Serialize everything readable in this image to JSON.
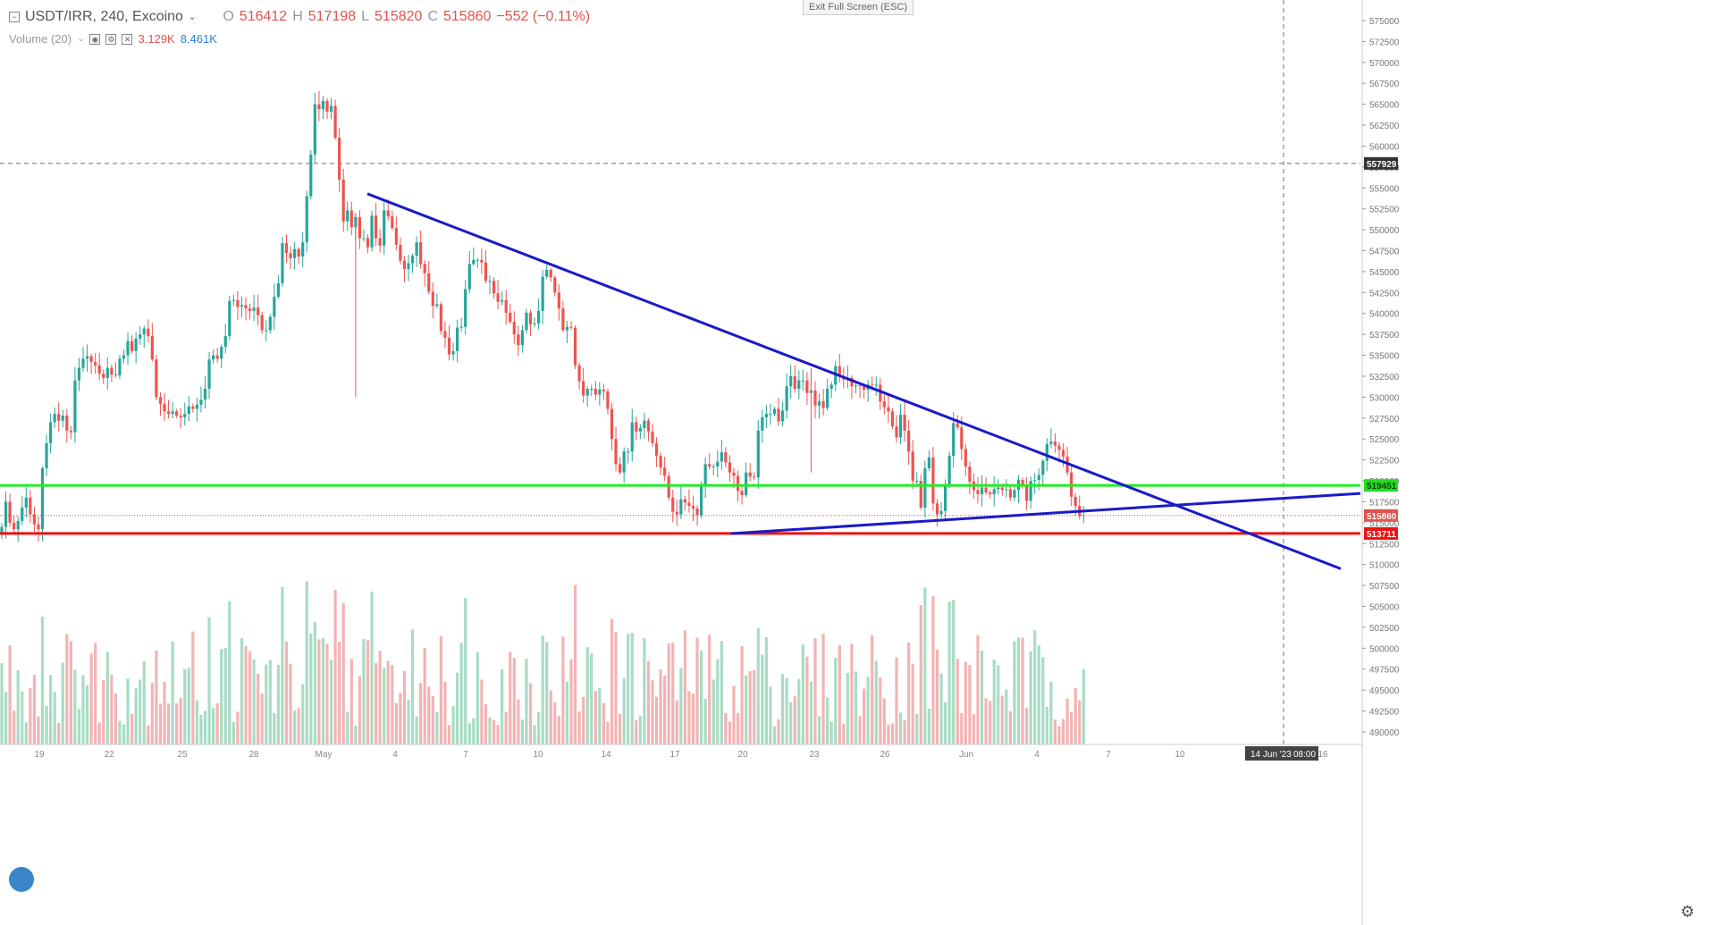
{
  "legend": {
    "symbol": "USDT/IRR, 240, Excoino",
    "o_label": "O",
    "o": "516412",
    "h_label": "H",
    "h": "517198",
    "l_label": "L",
    "l": "515820",
    "c_label": "C",
    "c": "515860",
    "change": "−552 (−0.11%)",
    "volume_label": "Volume (20)",
    "vol1": "3.129K",
    "vol2": "8.461K"
  },
  "exit_fullscreen": "Exit Full Screen (ESC)",
  "chart_data": {
    "type": "candlestick",
    "y_ticks": [
      575000,
      572500,
      570000,
      567500,
      565000,
      562500,
      560000,
      557500,
      555000,
      552500,
      550000,
      547500,
      545000,
      542500,
      540000,
      537500,
      535000,
      532500,
      530000,
      527500,
      525000,
      522500,
      520000,
      517500,
      515000,
      512500,
      510000,
      507500,
      505000,
      502500,
      500000,
      497500,
      495000,
      492500,
      490000
    ],
    "y_range": [
      488500,
      576600
    ],
    "x_labels": [
      "19",
      "22",
      "25",
      "28",
      "May",
      "4",
      "7",
      "10",
      "14",
      "17",
      "20",
      "23",
      "26",
      "Jun",
      "4",
      "7",
      "10",
      "14 Jun '23",
      "08:00",
      "16"
    ],
    "price_labels": [
      {
        "value": "557929",
        "color": "#333333",
        "style": "dashed"
      },
      {
        "value": "519451",
        "color": "#22dd22",
        "style": "solid"
      },
      {
        "value": "515860",
        "color": "#e0534f",
        "style": "dotted"
      },
      {
        "value": "513711",
        "color": "#ee1111",
        "style": "solid"
      }
    ],
    "support_level": 519451,
    "resistance_level": 513711,
    "colors": {
      "up": "#26a69a",
      "down": "#ef5350",
      "vol_up": "#a8dcc4",
      "vol_down": "#f4b3b3",
      "trend": "#1a1ac8"
    },
    "closes": [
      514500,
      517500,
      515000,
      514200,
      515200,
      516800,
      518000,
      516000,
      514800,
      514200,
      521500,
      524500,
      527000,
      528000,
      527200,
      527800,
      526000,
      525800,
      532000,
      533500,
      534600,
      534900,
      534200,
      533800,
      532800,
      532300,
      533500,
      532700,
      532600,
      534600,
      535000,
      536700,
      535500,
      537000,
      537500,
      538200,
      537300,
      534500,
      530000,
      529200,
      528300,
      528000,
      528300,
      527800,
      527600,
      528000,
      528900,
      528600,
      529100,
      529700,
      531000,
      534500,
      535000,
      534600,
      536000,
      537300,
      541500,
      541600,
      540800,
      541000,
      540600,
      540300,
      540700,
      539800,
      538000,
      538000,
      539600,
      542000,
      543600,
      548400,
      547200,
      546600,
      547700,
      546800,
      548500,
      554000,
      559000,
      565000,
      564400,
      565400,
      564100,
      564800,
      561000,
      556000,
      551000,
      552300,
      550300,
      551500,
      549000,
      549000,
      547900,
      551700,
      549000,
      548100,
      552300,
      551600,
      550200,
      548200,
      546300,
      545300,
      546000,
      546900,
      548500,
      545900,
      544800,
      542600,
      540900,
      541100,
      537900,
      537100,
      535100,
      535500,
      538300,
      538400,
      542900,
      545900,
      546400,
      546400,
      546100,
      543900,
      543900,
      542400,
      541400,
      541600,
      540100,
      539000,
      537500,
      536200,
      538000,
      540100,
      538700,
      538800,
      540300,
      544400,
      545200,
      544300,
      542500,
      540600,
      538000,
      538400,
      538300,
      533800,
      531900,
      530200,
      531000,
      531000,
      530300,
      530900,
      530700,
      528600,
      525000,
      522000,
      521000,
      523500,
      523500,
      527000,
      525900,
      526300,
      527200,
      525900,
      524500,
      523000,
      521600,
      520600,
      518000,
      516300,
      516000,
      517800,
      517400,
      517000,
      516700,
      515900,
      519500,
      522000,
      521700,
      521700,
      522300,
      523400,
      522200,
      521000,
      520600,
      518800,
      518300,
      521000,
      520500,
      520400,
      526000,
      527600,
      528000,
      528000,
      528600,
      527100,
      528400,
      531300,
      532500,
      531000,
      532000,
      532000,
      530500,
      530800,
      529000,
      529500,
      528700,
      531000,
      531500,
      533700,
      532500,
      532100,
      532300,
      531300,
      531400,
      531300,
      530900,
      531500,
      531400,
      531500,
      529500,
      528800,
      528300,
      526500,
      525200,
      527900,
      526000,
      523500,
      520000,
      520000,
      516800,
      521500,
      522800,
      517300,
      516000,
      516400,
      519400,
      523000,
      526900,
      526400,
      523800,
      521700,
      519900,
      518900,
      518400,
      519200,
      518600,
      518400,
      519000,
      519200,
      518900,
      519000,
      518000,
      518900,
      520100,
      519500,
      517600,
      520000,
      520100,
      520700,
      522400,
      524400,
      524700,
      524200,
      523700,
      522900,
      521000,
      518100,
      517000,
      515800,
      515900
    ]
  }
}
